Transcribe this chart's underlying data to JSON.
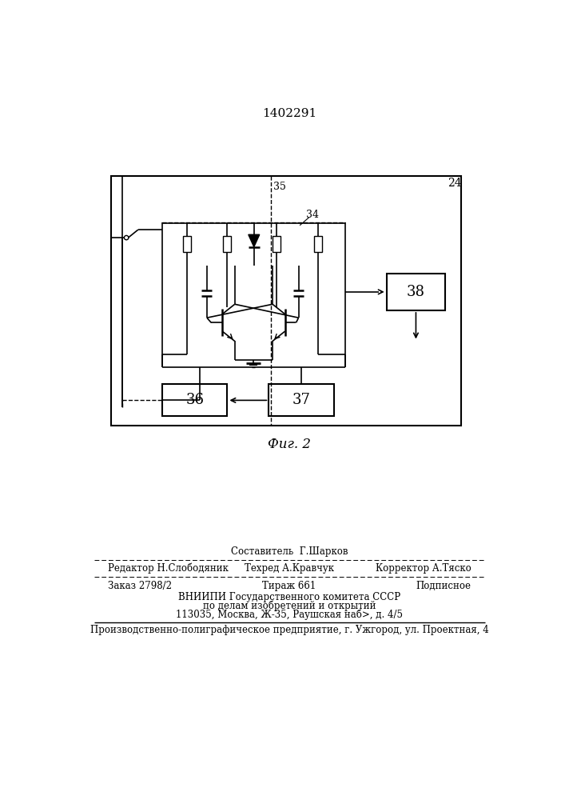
{
  "title": "1402291",
  "fig_label": "Фиг. 2",
  "bg_color": "#ffffff",
  "black": "#000000",
  "label_24": "24",
  "label_35": "35",
  "label_34": "34",
  "label_36": "36",
  "label_37": "37",
  "label_38": "38",
  "footer_line1": "Составитель  Г.Шарков",
  "footer_line2_left": "Редактор Н.Слободяник",
  "footer_line2_mid": "Техред А.Кравчук",
  "footer_line2_right": "Корректор А.Тяско",
  "footer_line3_left": "Заказ 2798/2",
  "footer_line3_mid": "Тираж 661",
  "footer_line3_right": "Подписное",
  "footer_line4": "ВНИИПИ Государственного комитета СССР",
  "footer_line5": "по делам изобретений и открытий",
  "footer_line6": "113035, Москва, Ж-35, Раушская наб>, д. 4/5",
  "footer_line7": "Производственно-полиграфическое предприятие, г. Ужгород, ул. Проектная, 4"
}
